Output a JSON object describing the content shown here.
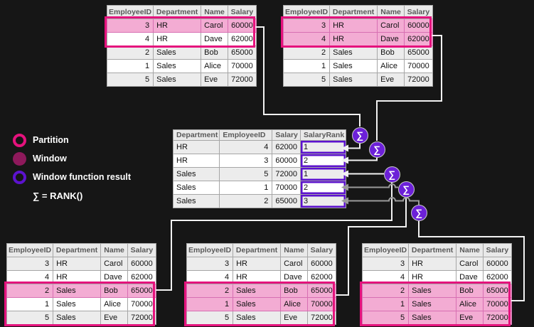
{
  "legend": {
    "items": [
      {
        "label": "Partition",
        "style": "ring",
        "color": "#E5127D"
      },
      {
        "label": "Window",
        "style": "filled",
        "color": "#8E195B"
      },
      {
        "label": "Window function result",
        "style": "ring",
        "color": "#5C12CE"
      }
    ],
    "formula": "∑ = RANK()"
  },
  "sigma": "∑",
  "employee_table": {
    "headers": [
      "EmployeeID",
      "Department",
      "Name",
      "Salary"
    ],
    "rows": [
      [
        "3",
        "HR",
        "Carol",
        "60000"
      ],
      [
        "4",
        "HR",
        "Dave",
        "62000"
      ],
      [
        "2",
        "Sales",
        "Bob",
        "65000"
      ],
      [
        "1",
        "Sales",
        "Alice",
        "70000"
      ],
      [
        "5",
        "Sales",
        "Eve",
        "72000"
      ]
    ]
  },
  "source_tables": [
    {
      "name": "top-left",
      "partition_rows": [
        0,
        1
      ],
      "window_rows": [
        0
      ]
    },
    {
      "name": "top-right",
      "partition_rows": [
        0,
        1
      ],
      "window_rows": [
        0,
        1
      ]
    },
    {
      "name": "bottom-left",
      "partition_rows": [
        2,
        3,
        4
      ],
      "window_rows": [
        2
      ]
    },
    {
      "name": "bottom-middle",
      "partition_rows": [
        2,
        3,
        4
      ],
      "window_rows": [
        2,
        3
      ]
    },
    {
      "name": "bottom-right",
      "partition_rows": [
        2,
        3,
        4
      ],
      "window_rows": [
        2,
        3,
        4
      ]
    }
  ],
  "result_table": {
    "headers": [
      "Department",
      "EmployeeID",
      "Salary",
      "SalaryRank"
    ],
    "rows": [
      [
        "HR",
        "4",
        "62000",
        "1"
      ],
      [
        "HR",
        "3",
        "60000",
        "2"
      ],
      [
        "Sales",
        "5",
        "72000",
        "1"
      ],
      [
        "Sales",
        "1",
        "70000",
        "2"
      ],
      [
        "Sales",
        "2",
        "65000",
        "3"
      ]
    ]
  },
  "colors": {
    "partition": "#E5127D",
    "window_fill": "#F3ACD3",
    "window_legend_fill": "#8E195B",
    "result_border": "#5C12CE",
    "sigma_fill": "#6C20D8",
    "line_light": "#F2F2F2",
    "line_gray": "#9A9A9A"
  }
}
